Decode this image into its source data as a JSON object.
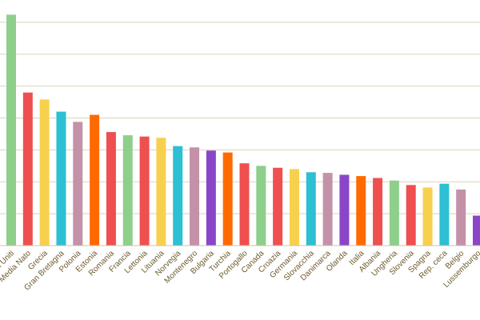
{
  "chart_data": {
    "type": "bar",
    "title": "",
    "xlabel": "",
    "ylabel": "",
    "grid": true,
    "legend": "none",
    "ylim": [
      0,
      3.75
    ],
    "y_grid_step": 0.5,
    "categories": [
      "Stati Uniti",
      "Media Nato",
      "Grecia",
      "Gran Bretagna",
      "Polonia",
      "Estonia",
      "Romania",
      "Francia",
      "Lettonia",
      "Lituania",
      "Norvegia",
      "Montenegro",
      "Bulgaria",
      "Turchia",
      "Portogallo",
      "Canada",
      "Croazia",
      "Germania",
      "Slovacchia",
      "Danimarca",
      "Olanda",
      "Italia",
      "Albania",
      "Ungheria",
      "Slovenia",
      "Spagna",
      "Rep. ceca",
      "Belgio",
      "Lussemburgo"
    ],
    "values": [
      3.62,
      2.4,
      2.29,
      2.1,
      1.94,
      2.05,
      1.78,
      1.73,
      1.71,
      1.69,
      1.56,
      1.54,
      1.49,
      1.46,
      1.29,
      1.25,
      1.22,
      1.2,
      1.15,
      1.14,
      1.11,
      1.09,
      1.06,
      1.02,
      0.95,
      0.91,
      0.97,
      0.88,
      0.47
    ],
    "colors": [
      "#8ecf8b",
      "#ef4f4f",
      "#f7d04e",
      "#2dbfd3",
      "#c492a8",
      "#ff6a00",
      "#ef4f4f",
      "#8ecf8b",
      "#ef4f4f",
      "#f7d04e",
      "#2dbfd3",
      "#c492a8",
      "#8a46c8",
      "#ff6a00",
      "#ef4f4f",
      "#8ecf8b",
      "#ef4f4f",
      "#f7d04e",
      "#2dbfd3",
      "#c492a8",
      "#8a46c8",
      "#ff6a00",
      "#ef4f4f",
      "#8ecf8b",
      "#ef4f4f",
      "#f7d04e",
      "#2dbfd3",
      "#c492a8",
      "#8a46c8"
    ]
  }
}
